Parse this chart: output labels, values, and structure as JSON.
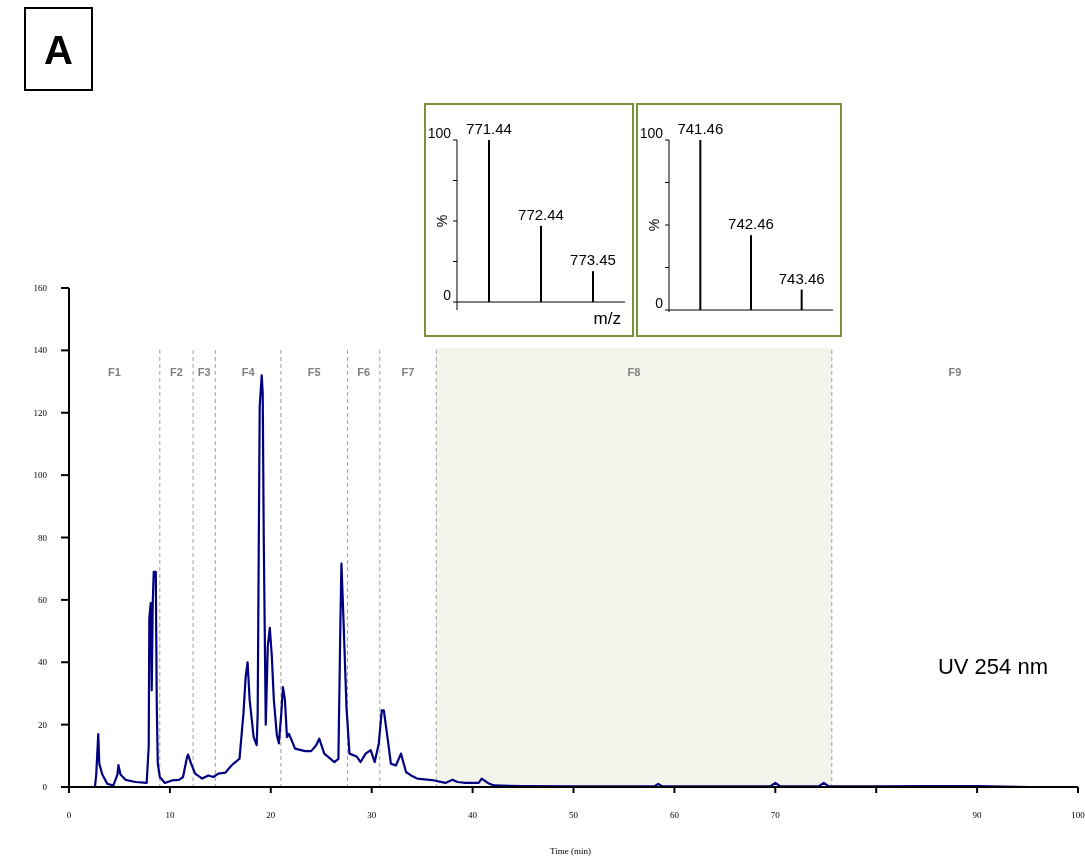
{
  "chart_data": [
    {
      "type": "line",
      "title": "A",
      "xlabel": "Time (min)",
      "x": [
        0,
        2.57,
        2.7,
        2.9,
        3.0,
        3.3,
        3.8,
        4.4,
        4.8,
        4.9,
        5.1,
        5.6,
        6.6,
        7.7,
        7.9,
        7.96,
        8.1,
        8.2,
        8.3,
        8.4,
        8.6,
        8.7,
        8.8,
        9.0,
        9.5,
        10.2,
        10.9,
        11.3,
        11.7,
        11.8,
        12.1,
        12.5,
        13.2,
        13.8,
        14.3,
        14.8,
        15.5,
        16.1,
        16.9,
        17.3,
        17.5,
        17.7,
        17.9,
        18.3,
        18.6,
        18.7,
        18.8,
        18.9,
        19.1,
        19.2,
        19.3,
        19.5,
        19.7,
        19.9,
        20.1,
        20.3,
        20.6,
        20.8,
        21.05,
        21.2,
        21.4,
        21.6,
        21.8,
        22.0,
        22.4,
        23.4,
        24.0,
        24.5,
        24.8,
        25.3,
        26.3,
        26.7,
        26.9,
        27.0,
        27.2,
        27.5,
        27.8,
        28.5,
        28.9,
        29.4,
        29.9,
        30.3,
        30.7,
        31.0,
        31.2,
        31.6,
        31.9,
        32.4,
        32.9,
        33.4,
        33.9,
        34.5,
        36.2,
        37.3,
        38.0,
        38.5,
        39.3,
        40.6,
        40.9,
        41.5,
        42.1,
        45,
        50,
        55,
        58,
        58.4,
        58.8,
        65,
        69.5,
        70.0,
        70.5,
        74.3,
        74.8,
        75.3,
        80,
        85,
        90,
        95.3
      ],
      "series": [
        {
          "color": "#000080",
          "values": [
            0,
            0,
            4,
            17,
            7.5,
            4,
            1,
            0.5,
            4,
            7,
            4,
            2.3,
            1.6,
            1.3,
            13,
            54,
            59,
            31,
            59,
            69,
            69,
            26,
            7.5,
            3.2,
            1.3,
            2.1,
            2.3,
            3.2,
            9.6,
            10.4,
            7.5,
            4.3,
            2.7,
            3.7,
            3.2,
            4.3,
            4.6,
            6.9,
            9.1,
            24,
            35,
            40,
            28,
            16,
            13.4,
            23.5,
            74,
            122,
            132,
            126,
            80,
            20,
            45,
            51,
            42,
            28,
            16.6,
            14,
            24,
            32,
            28,
            16,
            17,
            15.5,
            12.3,
            11.5,
            11.5,
            13.4,
            15.5,
            10.7,
            8,
            9,
            53,
            71.6,
            54,
            25.6,
            10.7,
            9.8,
            8,
            10.7,
            11.8,
            8,
            13.9,
            24.6,
            24.6,
            15,
            7.5,
            6.9,
            10.7,
            4.8,
            3.7,
            2.7,
            2.1,
            1.3,
            2.3,
            1.6,
            1.3,
            1.3,
            2.7,
            1.3,
            0.5,
            0.3,
            0.2,
            0.2,
            0.2,
            1,
            0.2,
            0.2,
            0.2,
            1.3,
            0.2,
            0.2,
            1.3,
            0.2,
            0.2,
            0.3,
            0.3,
            0
          ]
        }
      ],
      "xlim": [
        0,
        100
      ],
      "xticks": [
        0,
        10,
        20,
        30,
        40,
        50,
        60,
        70,
        {
          "value": 80,
          "label": null
        },
        90,
        100
      ],
      "ylim": [
        0,
        160
      ],
      "yticks": [
        0,
        20,
        40,
        60,
        80,
        100,
        120,
        140,
        160
      ],
      "grid": false,
      "marker": "none",
      "line_style": "solid",
      "ref_lines": [
        {
          "axis": "x",
          "value": 9.0,
          "color": "#a0a0a0",
          "line_style": "dashed"
        },
        {
          "axis": "x",
          "value": 12.3,
          "color": "#a0a0a0",
          "line_style": "dashed"
        },
        {
          "axis": "x",
          "value": 14.5,
          "color": "#a0a0a0",
          "line_style": "dashed"
        },
        {
          "axis": "x",
          "value": 21.0,
          "color": "#a0a0a0",
          "line_style": "dashed"
        },
        {
          "axis": "x",
          "value": 27.6,
          "color": "#a0a0a0",
          "line_style": "dashed"
        },
        {
          "axis": "x",
          "value": 30.8,
          "color": "#a0a0a0",
          "line_style": "dashed"
        },
        {
          "axis": "x",
          "value": 36.4,
          "color": "#a0a0a0",
          "line_style": "dashed"
        },
        {
          "axis": "x",
          "value": 75.6,
          "color": "#a0a0a0",
          "line_style": "dashed"
        }
      ],
      "bands": [
        {
          "axis": "x",
          "from": 36.4,
          "to": 75.6,
          "color": "#f4f4ec"
        }
      ],
      "annotations": [
        "UV 254 nm",
        "F1",
        "F2",
        "F3",
        "F4",
        "F5",
        "F6",
        "F7",
        "F8",
        "F9"
      ]
    },
    {
      "type": "bar",
      "xlabel": "m/z",
      "ylabel": "%",
      "categories": [
        null,
        null,
        null
      ],
      "values": [
        100,
        47,
        19
      ],
      "annotations": [
        {
          "text": "771.44",
          "y": 100
        },
        {
          "text": "772.44",
          "y": 47
        },
        {
          "text": "773.45",
          "y": 19
        }
      ],
      "color": "#000000",
      "ylim": [
        0,
        100
      ],
      "yticks": [
        0,
        {
          "value": 25,
          "label": null
        },
        {
          "value": 50,
          "label": null
        },
        {
          "value": 75,
          "label": null
        },
        100
      ]
    },
    {
      "type": "bar",
      "ylabel": "%",
      "categories": [
        null,
        null,
        null
      ],
      "values": [
        100,
        44,
        12
      ],
      "annotations": [
        {
          "text": "741.46",
          "y": 100
        },
        {
          "text": "742.46",
          "y": 44
        },
        {
          "text": "743.46",
          "y": 12
        }
      ],
      "color": "#000000",
      "ylim": [
        0,
        100
      ],
      "yticks": [
        0,
        {
          "value": 25,
          "label": null
        },
        {
          "value": 50,
          "label": null
        },
        {
          "value": 75,
          "label": null
        },
        100
      ]
    }
  ]
}
